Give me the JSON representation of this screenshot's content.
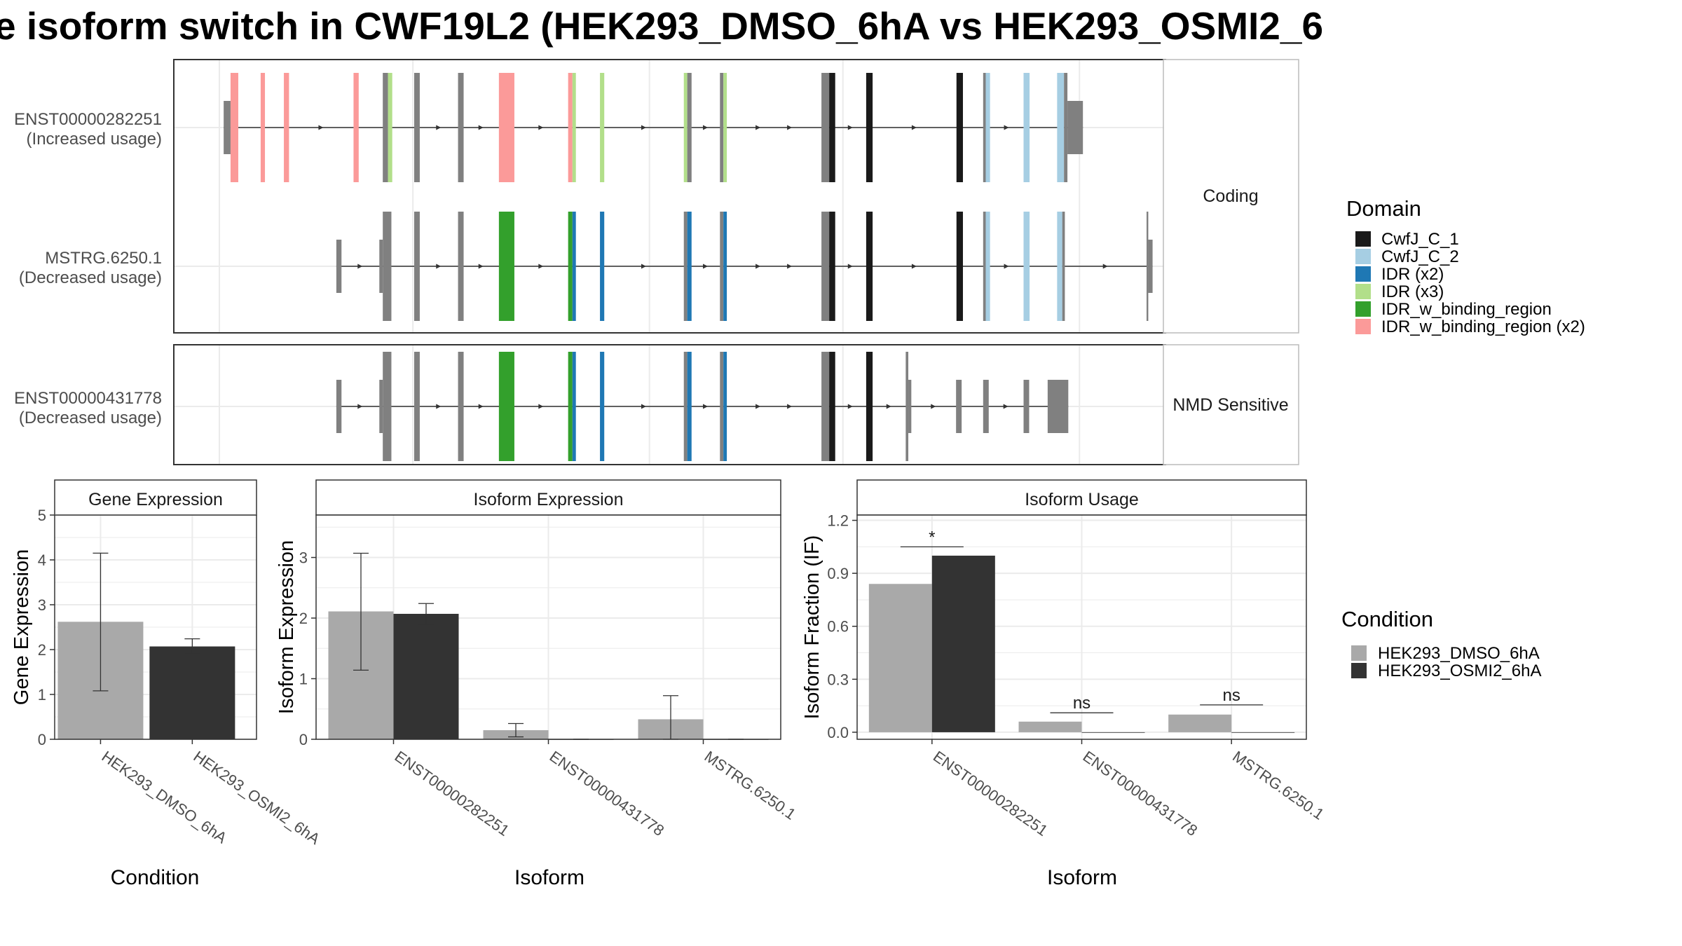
{
  "title": "e isoform switch in CWF19L2 (HEK293_DMSO_6hA vs HEK293_OSMI2_6",
  "colors": {
    "CwfJ_C_1": "#1a1a1a",
    "CwfJ_C_2": "#a6cee3",
    "IDR (x2)": "#1f78b4",
    "IDR (x3)": "#b2df8a",
    "IDR_w_binding_region": "#33a02c",
    "IDR_w_binding_region (x2)": "#fb9a99",
    "exon": "#808080",
    "DMSO": "#a9a9a9",
    "OSMI2": "#333333",
    "panel_border": "#333333",
    "strip_border": "#bbbbbb",
    "grid": "#ebebeb"
  },
  "strip_labels": {
    "coding": "Coding",
    "nmd": "NMD Sensitive"
  },
  "domain_legend": {
    "title": "Domain",
    "items": [
      "CwfJ_C_1",
      "CwfJ_C_2",
      "IDR (x2)",
      "IDR (x3)",
      "IDR_w_binding_region",
      "IDR_w_binding_region (x2)"
    ]
  },
  "condition_legend": {
    "title": "Condition",
    "items": [
      "HEK293_DMSO_6hA",
      "HEK293_OSMI2_6hA"
    ]
  },
  "transcripts": [
    {
      "name": "ENST00000282251",
      "usage": "(Increased usage)",
      "exons": [
        {
          "start": 1.0,
          "end": 2.6,
          "tall": false
        },
        {
          "start": 2.6,
          "end": 4.4,
          "tall": true,
          "domain": "IDR_w_binding_region (x2)"
        },
        {
          "start": 9.6,
          "end": 10.6,
          "tall": true,
          "domain": "IDR_w_binding_region (x2)"
        },
        {
          "start": 15.0,
          "end": 16.2,
          "tall": true,
          "domain": "IDR_w_binding_region (x2)"
        },
        {
          "start": 31.2,
          "end": 32.4,
          "tall": true,
          "domain": "IDR_w_binding_region (x2)"
        },
        {
          "start": 38.0,
          "end": 39.2,
          "tall": true
        },
        {
          "start": 39.2,
          "end": 40.2,
          "tall": true,
          "domain": "IDR (x3)"
        },
        {
          "start": 45.3,
          "end": 46.6,
          "tall": true
        },
        {
          "start": 55.5,
          "end": 56.8,
          "tall": true
        },
        {
          "start": 65.0,
          "end": 68.6,
          "tall": true,
          "domain": "IDR_w_binding_region (x2)"
        },
        {
          "start": 81.1,
          "end": 82.1,
          "tall": true,
          "domain": "IDR_w_binding_region (x2)"
        },
        {
          "start": 82.1,
          "end": 82.9,
          "tall": true,
          "domain": "IDR (x3)"
        },
        {
          "start": 88.5,
          "end": 89.5,
          "tall": true,
          "domain": "IDR (x3)"
        },
        {
          "start": 108.0,
          "end": 108.8,
          "tall": true,
          "domain": "IDR (x3)"
        },
        {
          "start": 108.8,
          "end": 109.8,
          "tall": true
        },
        {
          "start": 116.4,
          "end": 117.2,
          "tall": true
        },
        {
          "start": 117.2,
          "end": 118.0,
          "tall": true,
          "domain": "IDR (x3)"
        },
        {
          "start": 140.0,
          "end": 141.8,
          "tall": true
        },
        {
          "start": 141.8,
          "end": 143.2,
          "tall": true,
          "domain": "CwfJ_C_1"
        },
        {
          "start": 150.4,
          "end": 151.9,
          "tall": true,
          "domain": "CwfJ_C_1"
        },
        {
          "start": 171.4,
          "end": 172.9,
          "tall": true,
          "domain": "CwfJ_C_1"
        },
        {
          "start": 177.6,
          "end": 178.2,
          "tall": true
        },
        {
          "start": 178.2,
          "end": 179.2,
          "tall": true,
          "domain": "CwfJ_C_2"
        },
        {
          "start": 187.0,
          "end": 188.4,
          "tall": true,
          "domain": "CwfJ_C_2"
        },
        {
          "start": 194.8,
          "end": 196.4,
          "tall": true,
          "domain": "CwfJ_C_2"
        },
        {
          "start": 196.4,
          "end": 197.2,
          "tall": true
        },
        {
          "start": 197.2,
          "end": 200.8,
          "tall": false
        }
      ]
    },
    {
      "name": "MSTRG.6250.1",
      "usage": "(Decreased usage)",
      "exons": [
        {
          "start": 27.2,
          "end": 28.4,
          "tall": false
        },
        {
          "start": 37.2,
          "end": 38.0,
          "tall": false
        },
        {
          "start": 38.0,
          "end": 40.0,
          "tall": true
        },
        {
          "start": 45.3,
          "end": 46.6,
          "tall": true
        },
        {
          "start": 55.5,
          "end": 56.8,
          "tall": true
        },
        {
          "start": 65.0,
          "end": 68.6,
          "tall": true,
          "domain": "IDR_w_binding_region"
        },
        {
          "start": 81.1,
          "end": 82.1,
          "tall": true,
          "domain": "IDR_w_binding_region"
        },
        {
          "start": 82.1,
          "end": 82.9,
          "tall": true,
          "domain": "IDR (x2)"
        },
        {
          "start": 88.5,
          "end": 89.5,
          "tall": true,
          "domain": "IDR (x2)"
        },
        {
          "start": 108.0,
          "end": 108.8,
          "tall": true
        },
        {
          "start": 108.8,
          "end": 109.8,
          "tall": true,
          "domain": "IDR (x2)"
        },
        {
          "start": 116.4,
          "end": 117.2,
          "tall": true
        },
        {
          "start": 117.2,
          "end": 118.0,
          "tall": true,
          "domain": "IDR (x2)"
        },
        {
          "start": 140.0,
          "end": 141.8,
          "tall": true
        },
        {
          "start": 141.8,
          "end": 143.2,
          "tall": true,
          "domain": "CwfJ_C_1"
        },
        {
          "start": 150.4,
          "end": 151.9,
          "tall": true,
          "domain": "CwfJ_C_1"
        },
        {
          "start": 171.4,
          "end": 172.9,
          "tall": true,
          "domain": "CwfJ_C_1"
        },
        {
          "start": 177.6,
          "end": 178.2,
          "tall": true
        },
        {
          "start": 178.2,
          "end": 179.2,
          "tall": true,
          "domain": "CwfJ_C_2"
        },
        {
          "start": 187.0,
          "end": 188.4,
          "tall": true,
          "domain": "CwfJ_C_2"
        },
        {
          "start": 194.8,
          "end": 196.0,
          "tall": true,
          "domain": "CwfJ_C_2"
        },
        {
          "start": 196.0,
          "end": 196.6,
          "tall": true
        },
        {
          "start": 215.6,
          "end": 216.0,
          "tall": true
        },
        {
          "start": 216.0,
          "end": 217.0,
          "tall": false
        }
      ]
    },
    {
      "name": "ENST00000431778",
      "usage": "(Decreased usage)",
      "exons": [
        {
          "start": 27.2,
          "end": 28.4,
          "tall": false
        },
        {
          "start": 37.2,
          "end": 38.0,
          "tall": false
        },
        {
          "start": 38.0,
          "end": 40.0,
          "tall": true
        },
        {
          "start": 45.3,
          "end": 46.6,
          "tall": true
        },
        {
          "start": 55.5,
          "end": 56.8,
          "tall": true
        },
        {
          "start": 65.0,
          "end": 68.6,
          "tall": true,
          "domain": "IDR_w_binding_region"
        },
        {
          "start": 81.1,
          "end": 82.1,
          "tall": true,
          "domain": "IDR_w_binding_region"
        },
        {
          "start": 82.1,
          "end": 82.9,
          "tall": true,
          "domain": "IDR (x2)"
        },
        {
          "start": 88.5,
          "end": 89.5,
          "tall": true,
          "domain": "IDR (x2)"
        },
        {
          "start": 108.0,
          "end": 108.8,
          "tall": true
        },
        {
          "start": 108.8,
          "end": 109.8,
          "tall": true,
          "domain": "IDR (x2)"
        },
        {
          "start": 116.4,
          "end": 117.2,
          "tall": true
        },
        {
          "start": 117.2,
          "end": 118.0,
          "tall": true,
          "domain": "IDR (x2)"
        },
        {
          "start": 140.0,
          "end": 141.8,
          "tall": true
        },
        {
          "start": 141.8,
          "end": 143.2,
          "tall": true,
          "domain": "CwfJ_C_1"
        },
        {
          "start": 150.4,
          "end": 151.9,
          "tall": true,
          "domain": "CwfJ_C_1"
        },
        {
          "start": 159.6,
          "end": 160.2,
          "tall": true
        },
        {
          "start": 160.2,
          "end": 160.9,
          "tall": false
        },
        {
          "start": 171.3,
          "end": 172.6,
          "tall": false
        },
        {
          "start": 177.6,
          "end": 178.9,
          "tall": false
        },
        {
          "start": 187.0,
          "end": 188.3,
          "tall": false
        },
        {
          "start": 192.6,
          "end": 197.4,
          "tall": false
        }
      ]
    }
  ],
  "chart_data": [
    {
      "type": "bar",
      "title": "Gene Expression",
      "xlabel": "Condition",
      "ylabel": "Gene Expression",
      "ylim": [
        0,
        5
      ],
      "yticks": [
        "0",
        "1",
        "2",
        "3",
        "4",
        "5"
      ],
      "categories": [
        "HEK293_DMSO_6hA",
        "HEK293_OSMI2_6hA"
      ],
      "series": [
        {
          "name": "HEK293_DMSO_6hA",
          "values": [
            2.62,
            null
          ],
          "error_low": [
            1.08,
            null
          ],
          "error_high": [
            4.15,
            null
          ]
        },
        {
          "name": "HEK293_OSMI2_6hA",
          "values": [
            null,
            2.07
          ],
          "error_low": [
            null,
            1.9
          ],
          "error_high": [
            null,
            2.24
          ]
        }
      ]
    },
    {
      "type": "bar",
      "title": "Isoform Expression",
      "xlabel": "Isoform",
      "ylabel": "Isoform Expression",
      "ylim": [
        0,
        3.7
      ],
      "yticks": [
        "0",
        "1",
        "2",
        "3"
      ],
      "categories": [
        "ENST00000282251",
        "ENST00000431778",
        "MSTRG.6250.1"
      ],
      "series": [
        {
          "name": "HEK293_DMSO_6hA",
          "values": [
            2.11,
            0.15,
            0.33
          ],
          "error_low": [
            1.14,
            0.04,
            0.0
          ],
          "error_high": [
            3.07,
            0.26,
            0.72
          ]
        },
        {
          "name": "HEK293_OSMI2_6hA",
          "values": [
            2.07,
            0.0,
            0.0
          ],
          "error_low": [
            1.9,
            0.0,
            0.0
          ],
          "error_high": [
            2.24,
            0.0,
            0.0
          ]
        }
      ]
    },
    {
      "type": "bar",
      "title": "Isoform Usage",
      "xlabel": "Isoform",
      "ylabel": "Isoform Fraction (IF)",
      "ylim": [
        -0.04,
        1.23
      ],
      "yticks": [
        "0.0",
        "0.3",
        "0.6",
        "0.9",
        "1.2"
      ],
      "categories": [
        "ENST00000282251",
        "ENST00000431778",
        "MSTRG.6250.1"
      ],
      "series": [
        {
          "name": "HEK293_DMSO_6hA",
          "values": [
            0.84,
            0.06,
            0.1
          ]
        },
        {
          "name": "HEK293_OSMI2_6hA",
          "values": [
            1.0,
            0.0,
            0.0
          ]
        }
      ],
      "annotations": [
        {
          "category": "ENST00000282251",
          "label": "*",
          "y": 1.05
        },
        {
          "category": "ENST00000431778",
          "label": "ns",
          "y": 0.11
        },
        {
          "category": "MSTRG.6250.1",
          "label": "ns",
          "y": 0.155
        }
      ]
    }
  ]
}
